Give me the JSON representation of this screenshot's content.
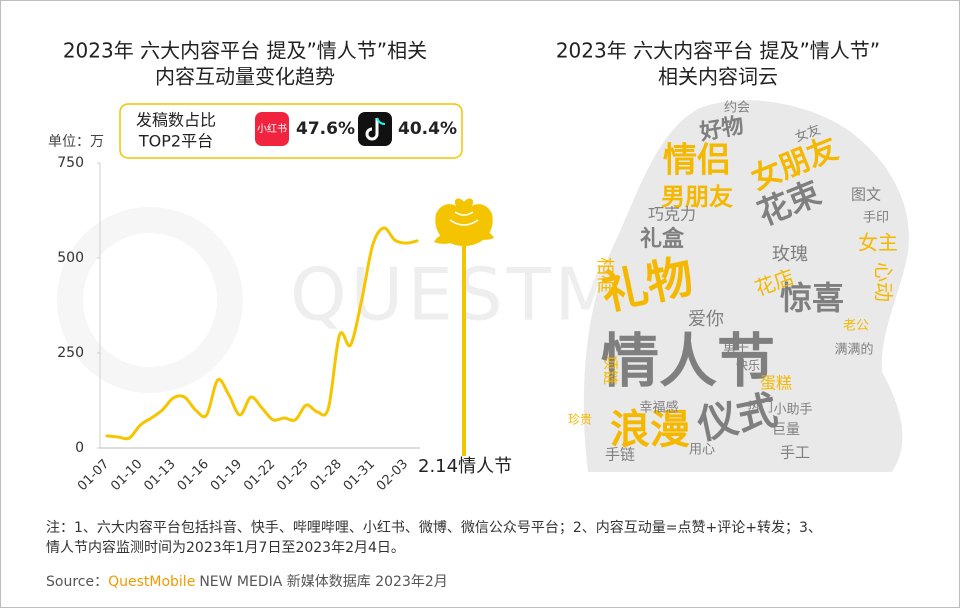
{
  "chart_data": [
    {
      "type": "line",
      "title": [
        "2023年 六大内容平台 提及”情人节”相关",
        "内容互动量变化趋势"
      ],
      "y_unit": "单位：万",
      "categories": [
        "01-07",
        null,
        null,
        "01-10",
        null,
        null,
        "01-13",
        null,
        null,
        "01-16",
        null,
        null,
        "01-19",
        null,
        null,
        "01-22",
        null,
        null,
        "01-25",
        null,
        null,
        "01-28",
        null,
        null,
        "01-31",
        null,
        null,
        "02-03",
        null
      ],
      "series": [
        {
          "color": "#f7c400",
          "values": [
            32,
            29,
            26,
            60,
            79,
            100,
            132,
            134,
            100,
            87,
            179,
            140,
            87,
            134,
            105,
            74,
            79,
            74,
            113,
            95,
            105,
            297,
            271,
            389,
            534,
            579,
            547,
            539,
            545
          ]
        }
      ],
      "ylim": [
        0,
        750
      ],
      "yticks": [
        0,
        250,
        500,
        750
      ],
      "annotation": "2.14情人节",
      "share_box": {
        "title_lines": [
          "发稿数占比",
          "TOP2平台"
        ],
        "icon_label": "小红书",
        "values": [
          47.6,
          40.4
        ],
        "value_labels": [
          "47.6%",
          "40.4%"
        ]
      }
    },
    {
      "type": "wordcloud",
      "title": [
        "2023年 六大内容平台 提及”情人节”",
        "相关内容词云"
      ],
      "words": [
        {
          "text": "情人节",
          "color": "#7f7f7f"
        },
        {
          "text": "礼物",
          "color": "#f5b800"
        },
        {
          "text": "浪漫",
          "color": "#f5b800"
        },
        {
          "text": "仪式",
          "color": "#7f7f7f"
        },
        {
          "text": "情侣",
          "color": "#f5b800"
        },
        {
          "text": "女朋友",
          "color": "#f5b800"
        },
        {
          "text": "男朋友",
          "color": "#f5b800"
        },
        {
          "text": "花束",
          "color": "#7f7f7f"
        },
        {
          "text": "惊喜",
          "color": "#7f7f7f"
        },
        {
          "text": "好物",
          "color": "#7f7f7f"
        },
        {
          "text": "礼盒",
          "color": "#7f7f7f"
        },
        {
          "text": "巧克力",
          "color": "#7f7f7f"
        },
        {
          "text": "花店",
          "color": "#f5b800"
        },
        {
          "text": "玫瑰",
          "color": "#7f7f7f"
        },
        {
          "text": "女主",
          "color": "#f5b800"
        },
        {
          "text": "心动",
          "color": "#f5b800"
        },
        {
          "text": "相框",
          "color": "#f5b800"
        },
        {
          "text": "蛋糕",
          "color": "#f5b800"
        },
        {
          "text": "手工",
          "color": "#7f7f7f"
        },
        {
          "text": "手链",
          "color": "#7f7f7f"
        },
        {
          "text": "爱你",
          "color": "#7f7f7f"
        },
        {
          "text": "约会",
          "color": "#7f7f7f"
        },
        {
          "text": "男士",
          "color": "#7f7f7f"
        },
        {
          "text": "小助手",
          "color": "#7f7f7f"
        },
        {
          "text": "项链",
          "color": "#f5b800"
        },
        {
          "text": "幸福感",
          "color": "#7f7f7f"
        },
        {
          "text": "图文",
          "color": "#7f7f7f"
        },
        {
          "text": "手印",
          "color": "#7f7f7f"
        },
        {
          "text": "老公",
          "color": "#f5b800"
        },
        {
          "text": "女友",
          "color": "#7f7f7f"
        },
        {
          "text": "热门",
          "color": "#7f7f7f"
        },
        {
          "text": "用心",
          "color": "#7f7f7f"
        },
        {
          "text": "巨量",
          "color": "#7f7f7f"
        },
        {
          "text": "快乐",
          "color": "#7f7f7f"
        },
        {
          "text": "满满的",
          "color": "#7f7f7f"
        },
        {
          "text": "珍贵",
          "color": "#f5b800"
        }
      ]
    }
  ],
  "watermark": "QUESTMOBILE",
  "footnote": [
    "注：1、六大内容平台包括抖音、快手、哔哩哔哩、小红书、微博、微信公众号平台；2、内容互动量=点赞+评论+转发；3、",
    "情人节内容监测时间为2023年1月7日至2023年2月4日。"
  ],
  "source": {
    "label": "Source：",
    "brand": "QuestMobile",
    "text": "NEW MEDIA 新媒体数据库 2023年2月"
  }
}
